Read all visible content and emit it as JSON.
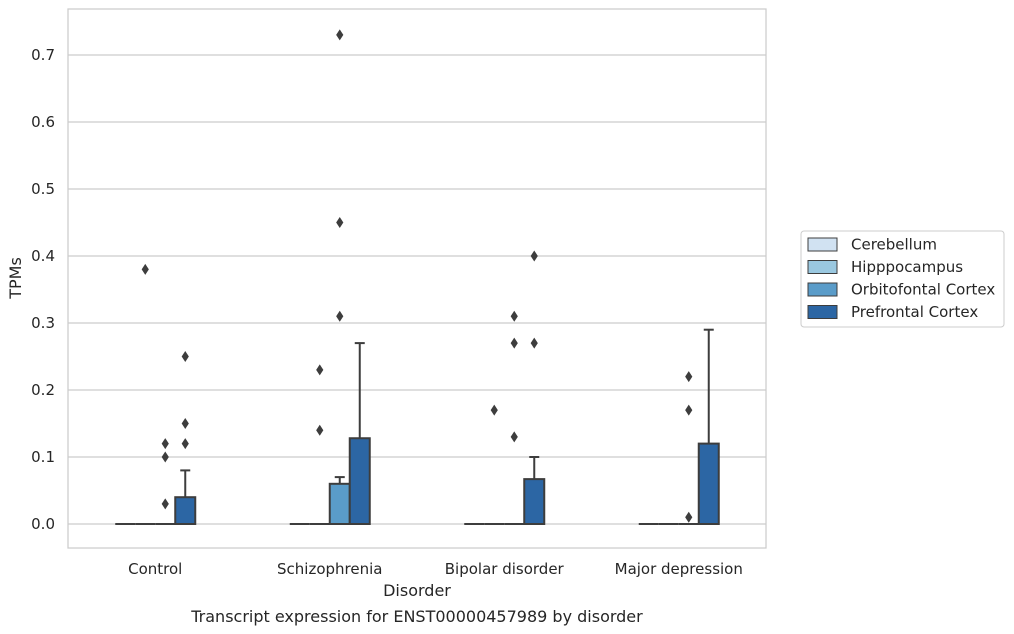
{
  "chart_data": {
    "type": "box",
    "caption": "Transcript expression for ENST00000457989 by disorder",
    "xlabel": "Disorder",
    "ylabel": "TPMs",
    "ylim": [
      -0.035,
      0.765
    ],
    "yticks": [
      0.0,
      0.1,
      0.2,
      0.3,
      0.4,
      0.5,
      0.6,
      0.7
    ],
    "ytick_labels": [
      "0.0",
      "0.1",
      "0.2",
      "0.3",
      "0.4",
      "0.5",
      "0.6",
      "0.7"
    ],
    "grid": "horizontal",
    "legend_position": "outside-right",
    "categories": [
      "Control",
      "Schizophrenia",
      "Bipolar disorder",
      "Major depression"
    ],
    "series": [
      {
        "name": "Cerebellum",
        "color": "#d1e2f2",
        "boxes": [
          {
            "q1": 0,
            "median": 0,
            "q3": 0,
            "whisker_low": 0,
            "whisker_high": 0,
            "outliers": []
          },
          {
            "q1": 0,
            "median": 0,
            "q3": 0,
            "whisker_low": 0,
            "whisker_high": 0,
            "outliers": []
          },
          {
            "q1": 0,
            "median": 0,
            "q3": 0,
            "whisker_low": 0,
            "whisker_high": 0,
            "outliers": []
          },
          {
            "q1": 0,
            "median": 0,
            "q3": 0,
            "whisker_low": 0,
            "whisker_high": 0,
            "outliers": []
          }
        ]
      },
      {
        "name": "Hipppocampus",
        "color": "#9ac8e0",
        "boxes": [
          {
            "q1": 0,
            "median": 0,
            "q3": 0,
            "whisker_low": 0,
            "whisker_high": 0,
            "outliers": [
              0.38
            ]
          },
          {
            "q1": 0,
            "median": 0,
            "q3": 0,
            "whisker_low": 0,
            "whisker_high": 0,
            "outliers": [
              0.14,
              0.23
            ]
          },
          {
            "q1": 0,
            "median": 0,
            "q3": 0,
            "whisker_low": 0,
            "whisker_high": 0,
            "outliers": [
              0.17
            ]
          },
          {
            "q1": 0,
            "median": 0,
            "q3": 0,
            "whisker_low": 0,
            "whisker_high": 0,
            "outliers": []
          }
        ]
      },
      {
        "name": "Orbitofontal Cortex",
        "color": "#5a9cc9",
        "boxes": [
          {
            "q1": 0,
            "median": 0,
            "q3": 0,
            "whisker_low": 0,
            "whisker_high": 0,
            "outliers": [
              0.03,
              0.1,
              0.12
            ]
          },
          {
            "q1": 0,
            "median": 0,
            "q3": 0.06,
            "whisker_low": 0,
            "whisker_high": 0.07,
            "outliers": [
              0.31,
              0.45,
              0.73
            ]
          },
          {
            "q1": 0,
            "median": 0,
            "q3": 0,
            "whisker_low": 0,
            "whisker_high": 0,
            "outliers": [
              0.13,
              0.27,
              0.31
            ]
          },
          {
            "q1": 0,
            "median": 0,
            "q3": 0,
            "whisker_low": 0,
            "whisker_high": 0,
            "outliers": [
              0.01,
              0.17,
              0.22
            ]
          }
        ]
      },
      {
        "name": "Prefrontal Cortex",
        "color": "#2c66a4",
        "boxes": [
          {
            "q1": 0,
            "median": 0,
            "q3": 0.04,
            "whisker_low": 0,
            "whisker_high": 0.08,
            "outliers": [
              0.12,
              0.15,
              0.25
            ]
          },
          {
            "q1": 0,
            "median": 0,
            "q3": 0.128,
            "whisker_low": 0,
            "whisker_high": 0.27,
            "outliers": []
          },
          {
            "q1": 0,
            "median": 0,
            "q3": 0.067,
            "whisker_low": 0,
            "whisker_high": 0.1,
            "outliers": [
              0.27,
              0.4
            ]
          },
          {
            "q1": 0,
            "median": 0,
            "q3": 0.12,
            "whisker_low": 0,
            "whisker_high": 0.29,
            "outliers": []
          }
        ]
      }
    ]
  }
}
